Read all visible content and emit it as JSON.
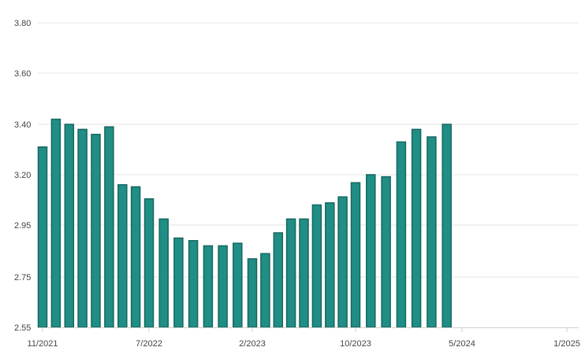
{
  "colors": {
    "bar_fill": "#208e85",
    "bar_stroke": "#16675f",
    "grid": "#e6e6e6",
    "axis": "#d0d0d0",
    "label": "#444444"
  },
  "chart_data": {
    "type": "bar",
    "title": "",
    "xlabel": "",
    "ylabel": "",
    "grid": true,
    "legend": "none",
    "ylim": [
      2.55,
      3.8
    ],
    "y_ticks": [
      "2.55",
      "2.75",
      "2.95",
      "3.20",
      "3.40",
      "3.60",
      "3.80"
    ],
    "x_ticks": [
      "11/2021",
      "7/2022",
      "2/2023",
      "10/2023",
      "5/2024",
      "1/2025"
    ],
    "categories": [
      "11/2021",
      "12/2021",
      "1/2022",
      "2/2022",
      "3/2022",
      "4/2022",
      "5/2022",
      "6/2022",
      "7/2022",
      "8/2022",
      "9/2022",
      "10/2022",
      "11/2022",
      "12/2022",
      "1/2023",
      "2/2023",
      "3/2023",
      "4/2023",
      "5/2023",
      "6/2023",
      "7/2023",
      "8/2023",
      "9/2023",
      "10/2023",
      "11/2023",
      "12/2023",
      "1/2024",
      "2/2024",
      "3/2024",
      "4/2024"
    ],
    "values": [
      3.31,
      3.42,
      3.4,
      3.38,
      3.36,
      3.39,
      3.15,
      3.14,
      3.08,
      2.98,
      2.9,
      2.89,
      2.87,
      2.87,
      2.88,
      2.82,
      2.84,
      2.92,
      2.98,
      2.98,
      3.05,
      3.06,
      3.09,
      3.16,
      3.2,
      3.19,
      3.33,
      3.38,
      3.35,
      3.4
    ]
  }
}
